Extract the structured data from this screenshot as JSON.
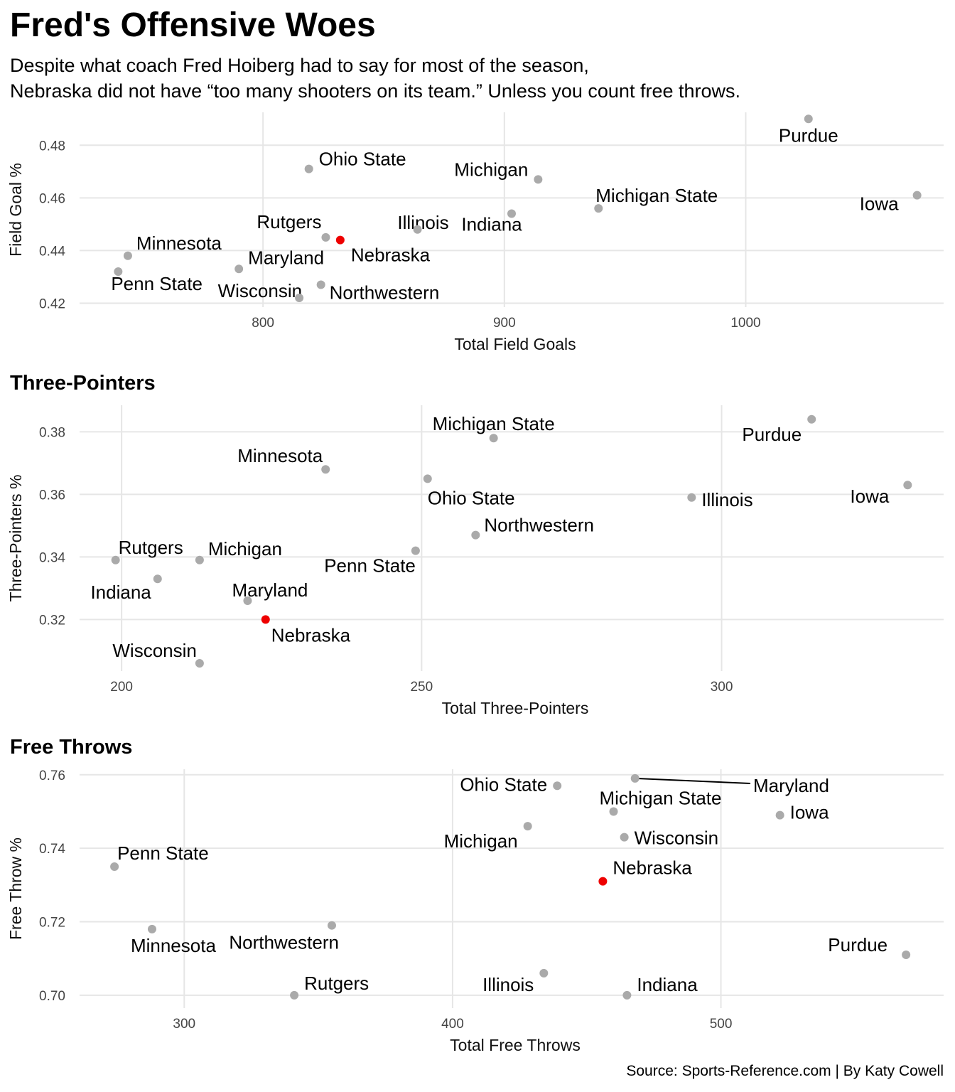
{
  "title": "Fred's Offensive Woes",
  "subtitle_lines": [
    "Despite what coach Fred Hoiberg had to say for most of the season,",
    "Nebraska did not have “too many shooters on its team.” Unless you count free throws."
  ],
  "caption": "Source: Sports-Reference.com | By Katy Cowell",
  "colors": {
    "highlight": "#ee0000",
    "point": "#aaaaaa",
    "grid": "#e6e6e6",
    "background": "#ffffff"
  },
  "panel_titles": [
    "",
    "Three-Pointers",
    "Free Throws"
  ],
  "chart_data": [
    {
      "type": "scatter",
      "title": "",
      "xlabel": "Total Field Goals",
      "ylabel": "Field Goal %",
      "xticks": [
        800,
        900,
        1000
      ],
      "yticks": [
        0.42,
        0.44,
        0.46,
        0.48
      ],
      "tick_labels_x": [
        "800",
        "900",
        "1000"
      ],
      "tick_labels_y": [
        "0.42",
        "0.44",
        "0.46",
        "0.48"
      ],
      "highlight": "Nebraska",
      "grid": true,
      "points": [
        {
          "team": "Purdue",
          "x": 1026,
          "y": 0.49
        },
        {
          "team": "Iowa",
          "x": 1071,
          "y": 0.461
        },
        {
          "team": "Michigan State",
          "x": 939,
          "y": 0.456
        },
        {
          "team": "Michigan",
          "x": 914,
          "y": 0.467
        },
        {
          "team": "Indiana",
          "x": 903,
          "y": 0.454
        },
        {
          "team": "Illinois",
          "x": 864,
          "y": 0.448
        },
        {
          "team": "Ohio State",
          "x": 819,
          "y": 0.471
        },
        {
          "team": "Rutgers",
          "x": 826,
          "y": 0.445
        },
        {
          "team": "Nebraska",
          "x": 832,
          "y": 0.444
        },
        {
          "team": "Northwestern",
          "x": 824,
          "y": 0.427
        },
        {
          "team": "Wisconsin",
          "x": 815,
          "y": 0.422
        },
        {
          "team": "Maryland",
          "x": 790,
          "y": 0.433
        },
        {
          "team": "Minnesota",
          "x": 744,
          "y": 0.438
        },
        {
          "team": "Penn State",
          "x": 740,
          "y": 0.432
        }
      ]
    },
    {
      "type": "scatter",
      "title": "Three-Pointers",
      "xlabel": "Total Three-Pointers",
      "ylabel": "Three-Pointers %",
      "xticks": [
        200,
        250,
        300
      ],
      "yticks": [
        0.32,
        0.34,
        0.36,
        0.38
      ],
      "tick_labels_x": [
        "200",
        "250",
        "300"
      ],
      "tick_labels_y": [
        "0.32",
        "0.34",
        "0.36",
        "0.38"
      ],
      "highlight": "Nebraska",
      "grid": true,
      "points": [
        {
          "team": "Purdue",
          "x": 315,
          "y": 0.384
        },
        {
          "team": "Iowa",
          "x": 331,
          "y": 0.363
        },
        {
          "team": "Illinois",
          "x": 295,
          "y": 0.359
        },
        {
          "team": "Michigan State",
          "x": 262,
          "y": 0.378
        },
        {
          "team": "Northwestern",
          "x": 259,
          "y": 0.347
        },
        {
          "team": "Ohio State",
          "x": 251,
          "y": 0.365
        },
        {
          "team": "Penn State",
          "x": 249,
          "y": 0.342
        },
        {
          "team": "Minnesota",
          "x": 234,
          "y": 0.368
        },
        {
          "team": "Nebraska",
          "x": 224,
          "y": 0.32
        },
        {
          "team": "Maryland",
          "x": 221,
          "y": 0.326
        },
        {
          "team": "Michigan",
          "x": 213,
          "y": 0.339
        },
        {
          "team": "Wisconsin",
          "x": 213,
          "y": 0.306
        },
        {
          "team": "Indiana",
          "x": 206,
          "y": 0.333
        },
        {
          "team": "Rutgers",
          "x": 199,
          "y": 0.339
        }
      ]
    },
    {
      "type": "scatter",
      "title": "Free Throws",
      "xlabel": "Total Free Throws",
      "ylabel": "Free Throw %",
      "xticks": [
        300,
        400,
        500
      ],
      "yticks": [
        0.7,
        0.72,
        0.74,
        0.76
      ],
      "tick_labels_x": [
        "300",
        "400",
        "500"
      ],
      "tick_labels_y": [
        "0.70",
        "0.72",
        "0.74",
        "0.76"
      ],
      "highlight": "Nebraska",
      "grid": true,
      "points": [
        {
          "team": "Purdue",
          "x": 569,
          "y": 0.711
        },
        {
          "team": "Iowa",
          "x": 522,
          "y": 0.749
        },
        {
          "team": "Maryland",
          "x": 468,
          "y": 0.759
        },
        {
          "team": "Michigan State",
          "x": 460,
          "y": 0.75
        },
        {
          "team": "Wisconsin",
          "x": 464,
          "y": 0.743
        },
        {
          "team": "Nebraska",
          "x": 456,
          "y": 0.731
        },
        {
          "team": "Indiana",
          "x": 465,
          "y": 0.7
        },
        {
          "team": "Ohio State",
          "x": 439,
          "y": 0.757
        },
        {
          "team": "Michigan",
          "x": 428,
          "y": 0.746
        },
        {
          "team": "Illinois",
          "x": 434,
          "y": 0.706
        },
        {
          "team": "Northwestern",
          "x": 355,
          "y": 0.719
        },
        {
          "team": "Rutgers",
          "x": 341,
          "y": 0.7
        },
        {
          "team": "Minnesota",
          "x": 288,
          "y": 0.718
        },
        {
          "team": "Penn State",
          "x": 274,
          "y": 0.735
        }
      ]
    }
  ]
}
